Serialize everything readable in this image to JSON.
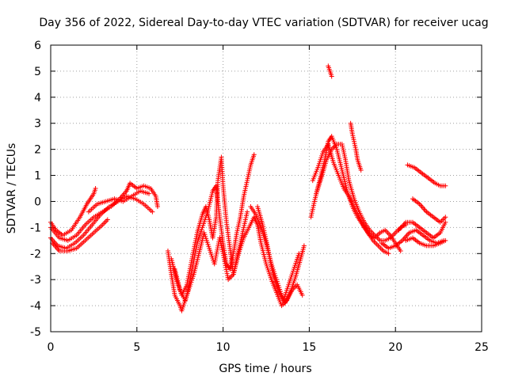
{
  "chart_data": {
    "type": "scatter",
    "title": "Day 356 of 2022, Sidereal Day-to-day VTEC variation (SDTVAR) for receiver ucag",
    "xlabel": "GPS time / hours",
    "ylabel": "SDTVAR / TECUs",
    "xlim": [
      0,
      25
    ],
    "ylim": [
      -5,
      6
    ],
    "xticks": [
      "0",
      "5",
      "10",
      "15",
      "20",
      "25"
    ],
    "yticks": [
      "-5",
      "-4",
      "-3",
      "-2",
      "-1",
      "0",
      "1",
      "2",
      "3",
      "4",
      "5",
      "6"
    ],
    "grid": true,
    "legend": "none",
    "marker": "+",
    "color": "#ff0000",
    "series": [
      {
        "points": [
          [
            0.0,
            -0.8
          ],
          [
            0.3,
            -1.1
          ],
          [
            0.7,
            -1.3
          ],
          [
            1.2,
            -1.1
          ],
          [
            1.7,
            -0.6
          ],
          [
            2.1,
            -0.1
          ],
          [
            2.5,
            0.3
          ],
          [
            2.6,
            0.5
          ]
        ]
      },
      {
        "points": [
          [
            0.0,
            -1.0
          ],
          [
            0.5,
            -1.4
          ],
          [
            1.0,
            -1.5
          ],
          [
            1.5,
            -1.3
          ],
          [
            2.0,
            -0.9
          ],
          [
            2.5,
            -0.6
          ],
          [
            3.0,
            -0.4
          ],
          [
            3.5,
            -0.2
          ],
          [
            4.0,
            0.1
          ],
          [
            4.4,
            0.4
          ],
          [
            4.6,
            0.7
          ],
          [
            5.0,
            0.5
          ],
          [
            5.4,
            0.6
          ],
          [
            5.8,
            0.5
          ],
          [
            6.1,
            0.2
          ],
          [
            6.2,
            -0.2
          ]
        ]
      },
      {
        "points": [
          [
            0.0,
            -1.4
          ],
          [
            0.4,
            -1.7
          ],
          [
            0.9,
            -1.8
          ],
          [
            1.4,
            -1.6
          ],
          [
            1.9,
            -1.3
          ],
          [
            2.4,
            -0.9
          ],
          [
            2.9,
            -0.5
          ],
          [
            3.4,
            -0.2
          ],
          [
            3.9,
            0.0
          ],
          [
            4.4,
            0.2
          ],
          [
            4.9,
            0.1
          ],
          [
            5.4,
            -0.1
          ],
          [
            5.9,
            -0.4
          ]
        ]
      },
      {
        "points": [
          [
            0.1,
            -1.6
          ],
          [
            0.5,
            -1.9
          ],
          [
            1.0,
            -1.9
          ],
          [
            1.5,
            -1.8
          ],
          [
            2.0,
            -1.5
          ],
          [
            2.5,
            -1.2
          ],
          [
            3.0,
            -0.9
          ],
          [
            3.3,
            -0.7
          ]
        ]
      },
      {
        "points": [
          [
            2.2,
            -0.4
          ],
          [
            2.7,
            -0.1
          ],
          [
            3.2,
            0.0
          ],
          [
            3.7,
            0.1
          ],
          [
            4.2,
            0.0
          ],
          [
            4.7,
            0.2
          ],
          [
            5.2,
            0.4
          ],
          [
            5.7,
            0.3
          ]
        ]
      },
      {
        "points": [
          [
            6.8,
            -1.9
          ],
          [
            7.0,
            -2.8
          ],
          [
            7.2,
            -3.6
          ],
          [
            7.5,
            -4.0
          ],
          [
            7.6,
            -4.2
          ],
          [
            7.9,
            -3.6
          ],
          [
            8.2,
            -2.6
          ],
          [
            8.5,
            -1.6
          ],
          [
            8.8,
            -1.0
          ],
          [
            9.1,
            -0.4
          ],
          [
            9.4,
            0.4
          ],
          [
            9.6,
            0.6
          ],
          [
            9.8,
            -0.6
          ],
          [
            10.0,
            -1.6
          ],
          [
            10.2,
            -2.4
          ],
          [
            10.4,
            -2.6
          ],
          [
            10.6,
            -2.0
          ],
          [
            10.8,
            -1.2
          ],
          [
            11.0,
            -0.6
          ],
          [
            11.2,
            0.2
          ],
          [
            11.4,
            0.8
          ],
          [
            11.6,
            1.4
          ],
          [
            11.8,
            1.8
          ]
        ]
      },
      {
        "points": [
          [
            7.0,
            -2.2
          ],
          [
            7.3,
            -3.0
          ],
          [
            7.6,
            -3.6
          ],
          [
            7.9,
            -3.2
          ],
          [
            8.2,
            -2.2
          ],
          [
            8.5,
            -1.2
          ],
          [
            8.8,
            -0.5
          ],
          [
            9.0,
            -0.2
          ],
          [
            9.2,
            -0.7
          ],
          [
            9.4,
            -1.4
          ],
          [
            9.6,
            -0.6
          ],
          [
            9.7,
            0.8
          ],
          [
            9.9,
            1.7
          ],
          [
            10.0,
            0.6
          ],
          [
            10.2,
            -0.8
          ],
          [
            10.4,
            -1.8
          ],
          [
            10.6,
            -2.8
          ],
          [
            10.8,
            -2.2
          ],
          [
            11.0,
            -1.6
          ],
          [
            11.2,
            -1.0
          ],
          [
            11.4,
            -0.4
          ]
        ]
      },
      {
        "points": [
          [
            7.2,
            -2.6
          ],
          [
            7.5,
            -3.4
          ],
          [
            7.8,
            -3.8
          ],
          [
            8.0,
            -3.4
          ],
          [
            8.3,
            -2.8
          ],
          [
            8.6,
            -2.0
          ],
          [
            8.9,
            -1.2
          ],
          [
            9.2,
            -1.8
          ],
          [
            9.5,
            -2.4
          ],
          [
            9.8,
            -1.4
          ],
          [
            10.0,
            -2.0
          ],
          [
            10.3,
            -3.0
          ],
          [
            10.6,
            -2.8
          ],
          [
            10.9,
            -2.0
          ],
          [
            11.2,
            -1.4
          ],
          [
            11.5,
            -1.0
          ],
          [
            11.8,
            -0.6
          ],
          [
            12.0,
            -0.9
          ],
          [
            12.2,
            -1.6
          ],
          [
            12.5,
            -2.4
          ],
          [
            12.8,
            -3.0
          ],
          [
            13.1,
            -3.5
          ],
          [
            13.4,
            -4.0
          ],
          [
            13.7,
            -3.8
          ],
          [
            14.0,
            -3.4
          ],
          [
            14.3,
            -3.2
          ],
          [
            14.6,
            -3.6
          ]
        ]
      },
      {
        "points": [
          [
            11.6,
            -0.2
          ],
          [
            11.9,
            -0.5
          ],
          [
            12.2,
            -1.0
          ],
          [
            12.5,
            -1.6
          ],
          [
            12.8,
            -2.4
          ],
          [
            13.1,
            -3.0
          ],
          [
            13.4,
            -3.6
          ],
          [
            13.6,
            -3.9
          ],
          [
            13.9,
            -3.5
          ],
          [
            14.2,
            -2.9
          ],
          [
            14.5,
            -2.2
          ],
          [
            14.7,
            -1.7
          ]
        ]
      },
      {
        "points": [
          [
            12.0,
            -0.2
          ],
          [
            12.3,
            -0.9
          ],
          [
            12.6,
            -1.8
          ],
          [
            12.9,
            -2.8
          ],
          [
            13.2,
            -3.4
          ],
          [
            13.5,
            -3.8
          ],
          [
            13.8,
            -3.2
          ],
          [
            14.1,
            -2.6
          ],
          [
            14.4,
            -2.0
          ]
        ]
      },
      {
        "points": [
          [
            15.1,
            -0.6
          ],
          [
            15.3,
            0.0
          ],
          [
            15.6,
            0.8
          ],
          [
            15.9,
            1.6
          ],
          [
            16.1,
            2.3
          ],
          [
            16.3,
            2.5
          ],
          [
            16.6,
            2.0
          ],
          [
            16.9,
            1.2
          ],
          [
            17.2,
            0.4
          ],
          [
            17.5,
            -0.2
          ],
          [
            17.8,
            -0.6
          ],
          [
            18.1,
            -0.9
          ],
          [
            18.4,
            -1.2
          ],
          [
            18.7,
            -1.5
          ],
          [
            19.0,
            -1.7
          ],
          [
            19.3,
            -1.9
          ],
          [
            19.6,
            -2.0
          ]
        ]
      },
      {
        "points": [
          [
            15.2,
            0.8
          ],
          [
            15.5,
            1.3
          ],
          [
            15.8,
            1.9
          ],
          [
            16.1,
            2.2
          ],
          [
            16.4,
            1.5
          ],
          [
            16.7,
            1.0
          ],
          [
            17.0,
            0.5
          ],
          [
            17.3,
            0.2
          ],
          [
            17.6,
            -0.2
          ],
          [
            17.9,
            -0.6
          ],
          [
            18.2,
            -1.0
          ],
          [
            18.5,
            -1.3
          ],
          [
            18.8,
            -1.4
          ],
          [
            19.1,
            -1.2
          ],
          [
            19.4,
            -1.1
          ],
          [
            19.7,
            -1.3
          ],
          [
            20.0,
            -1.6
          ],
          [
            20.3,
            -1.9
          ]
        ]
      },
      {
        "points": [
          [
            15.4,
            0.3
          ],
          [
            15.7,
            0.9
          ],
          [
            16.0,
            1.6
          ],
          [
            16.3,
            2.0
          ],
          [
            16.6,
            2.2
          ],
          [
            16.9,
            2.2
          ],
          [
            17.1,
            1.6
          ],
          [
            17.3,
            0.8
          ],
          [
            17.6,
            0.1
          ],
          [
            17.9,
            -0.4
          ],
          [
            18.2,
            -0.8
          ],
          [
            18.5,
            -1.1
          ],
          [
            18.8,
            -1.3
          ],
          [
            19.1,
            -1.5
          ],
          [
            19.4,
            -1.5
          ],
          [
            19.7,
            -1.4
          ],
          [
            20.0,
            -1.2
          ],
          [
            20.3,
            -1.0
          ],
          [
            20.6,
            -0.9
          ]
        ]
      },
      {
        "points": [
          [
            16.1,
            5.2
          ],
          [
            16.2,
            5.0
          ],
          [
            16.3,
            4.8
          ]
        ]
      },
      {
        "points": [
          [
            17.4,
            3.0
          ],
          [
            17.5,
            2.6
          ],
          [
            17.6,
            2.3
          ],
          [
            17.7,
            2.0
          ],
          [
            17.8,
            1.6
          ],
          [
            17.9,
            1.4
          ],
          [
            18.0,
            1.2
          ]
        ]
      },
      {
        "points": [
          [
            19.2,
            -1.6
          ],
          [
            19.6,
            -1.8
          ],
          [
            20.0,
            -1.7
          ],
          [
            20.4,
            -1.5
          ],
          [
            20.8,
            -1.2
          ],
          [
            21.2,
            -1.1
          ],
          [
            21.6,
            -1.3
          ],
          [
            22.0,
            -1.5
          ],
          [
            22.4,
            -1.6
          ],
          [
            22.8,
            -1.5
          ]
        ]
      },
      {
        "points": [
          [
            20.2,
            -1.1
          ],
          [
            20.6,
            -0.8
          ],
          [
            21.0,
            -0.8
          ],
          [
            21.4,
            -1.0
          ],
          [
            21.8,
            -1.2
          ],
          [
            22.2,
            -1.4
          ],
          [
            22.6,
            -1.2
          ],
          [
            22.9,
            -0.8
          ]
        ]
      },
      {
        "points": [
          [
            20.6,
            -1.5
          ],
          [
            21.0,
            -1.4
          ],
          [
            21.4,
            -1.6
          ],
          [
            21.8,
            -1.7
          ],
          [
            22.2,
            -1.7
          ],
          [
            22.6,
            -1.6
          ],
          [
            22.9,
            -1.5
          ]
        ]
      },
      {
        "points": [
          [
            20.7,
            1.4
          ],
          [
            21.1,
            1.3
          ],
          [
            21.5,
            1.1
          ],
          [
            21.9,
            0.9
          ],
          [
            22.3,
            0.7
          ],
          [
            22.6,
            0.6
          ],
          [
            22.9,
            0.6
          ]
        ]
      },
      {
        "points": [
          [
            21.0,
            0.1
          ],
          [
            21.4,
            -0.1
          ],
          [
            21.8,
            -0.4
          ],
          [
            22.2,
            -0.6
          ],
          [
            22.6,
            -0.8
          ],
          [
            22.9,
            -0.6
          ]
        ]
      }
    ]
  }
}
